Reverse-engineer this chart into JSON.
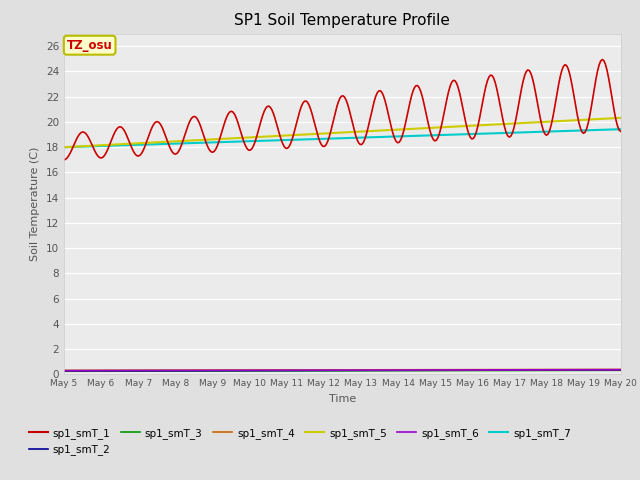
{
  "title": "SP1 Soil Temperature Profile",
  "xlabel": "Time",
  "ylabel": "Soil Temperature (C)",
  "annotation": "TZ_osu",
  "annotation_color": "#cc0000",
  "annotation_bg": "#ffffcc",
  "annotation_border": "#bbbb00",
  "ylim": [
    0,
    27
  ],
  "yticks": [
    0,
    2,
    4,
    6,
    8,
    10,
    12,
    14,
    16,
    18,
    20,
    22,
    24,
    26
  ],
  "x_end_days": 15,
  "num_points": 360,
  "bg_color": "#e0e0e0",
  "plot_bg_color": "#ebebeb",
  "series": {
    "sp1_smT_1": {
      "color": "#cc0000",
      "lw": 1.2
    },
    "sp1_smT_2": {
      "color": "#000099",
      "lw": 1.2
    },
    "sp1_smT_3": {
      "color": "#009900",
      "lw": 1.2
    },
    "sp1_smT_4": {
      "color": "#cc6600",
      "lw": 1.2
    },
    "sp1_smT_5": {
      "color": "#cccc00",
      "lw": 1.5
    },
    "sp1_smT_6": {
      "color": "#9900cc",
      "lw": 1.2
    },
    "sp1_smT_7": {
      "color": "#00cccc",
      "lw": 1.5
    }
  },
  "xtick_labels": [
    "May 5",
    "May 6",
    "May 7",
    "May 8",
    "May 9",
    "May 10",
    "May 11",
    "May 12",
    "May 13",
    "May 14",
    "May 15",
    "May 16",
    "May 17",
    "May 18",
    "May 19",
    "May 20"
  ],
  "xtick_positions": [
    0,
    1,
    2,
    3,
    4,
    5,
    6,
    7,
    8,
    9,
    10,
    11,
    12,
    13,
    14,
    15
  ],
  "figsize": [
    6.4,
    4.8
  ],
  "dpi": 100
}
